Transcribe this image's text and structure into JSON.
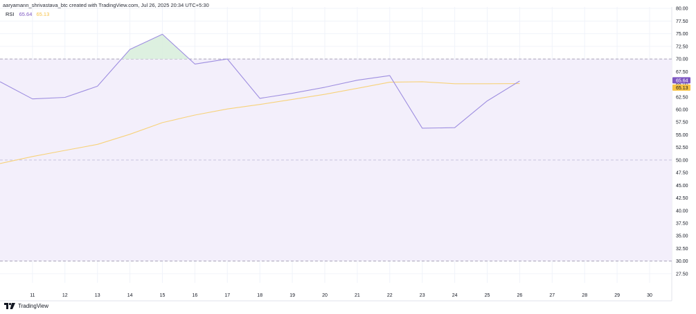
{
  "header": {
    "text": "aaryamann_shrivastava_btc created with TradingView.com, Jul 26, 2025 20:34 UTC+5:30"
  },
  "legend": {
    "name": "RSI",
    "rsi_value": "65.64",
    "ma_value": "65.13"
  },
  "footer": {
    "brand": "TradingView"
  },
  "colors": {
    "rsi_line": "#9e8ee0",
    "ma_line": "#f7d27a",
    "band_fill": "#f3effb",
    "overbought_fill": "#d9eedd",
    "rsi_badge": "#7e57c2",
    "ma_badge": "#f7c244",
    "grid": "#f0f3fa"
  },
  "chart_data": {
    "type": "line",
    "x": [
      10,
      11,
      12,
      13,
      14,
      15,
      16,
      17,
      18,
      19,
      20,
      21,
      22,
      23,
      24,
      25,
      26
    ],
    "series": [
      {
        "name": "RSI",
        "values": [
          65.5,
          62.1,
          62.4,
          64.6,
          71.9,
          74.9,
          69.0,
          70.0,
          62.2,
          63.2,
          64.4,
          65.8,
          66.7,
          56.3,
          56.4,
          61.7,
          65.64
        ]
      },
      {
        "name": "",
        "values": [
          49.3,
          50.7,
          51.9,
          53.1,
          55.1,
          57.4,
          58.9,
          60.1,
          61.0,
          62.0,
          63.0,
          64.2,
          65.4,
          65.5,
          65.1,
          65.1,
          65.13
        ]
      }
    ],
    "x_ticks": [
      "11",
      "12",
      "13",
      "14",
      "15",
      "16",
      "17",
      "18",
      "19",
      "20",
      "21",
      "22",
      "23",
      "24",
      "25",
      "26",
      "27",
      "28",
      "29",
      "30"
    ],
    "y_ticks": [
      "80.00",
      "77.50",
      "75.00",
      "72.50",
      "70.00",
      "67.50",
      "65.00",
      "62.50",
      "60.00",
      "57.50",
      "55.00",
      "52.50",
      "50.00",
      "47.50",
      "45.00",
      "42.50",
      "40.00",
      "37.50",
      "35.00",
      "32.50",
      "30.00",
      "27.50"
    ],
    "ylim": [
      25.7,
      80.3
    ],
    "band": [
      30,
      70
    ],
    "midline": 50,
    "grid": true
  }
}
